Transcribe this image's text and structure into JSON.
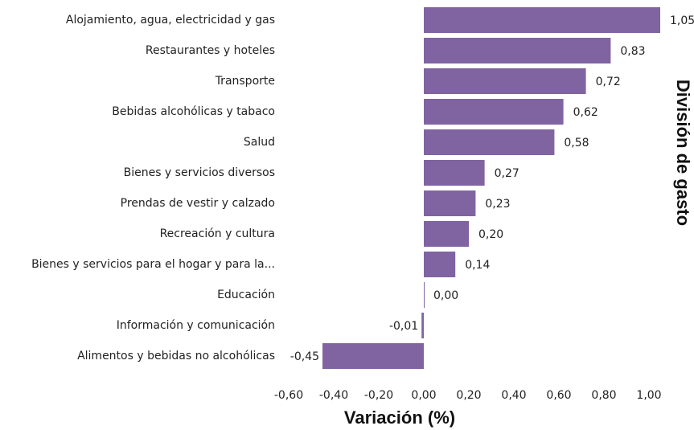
{
  "chart_data": {
    "type": "barh",
    "categories": [
      "Alojamiento, agua, electricidad y gas",
      "Restaurantes y hoteles",
      "Transporte",
      "Bebidas alcohólicas y tabaco",
      "Salud",
      "Bienes y servicios diversos",
      "Prendas de vestir y calzado",
      "Recreación y cultura",
      "Bienes y servicios para el hogar y para la...",
      "Educación",
      "Información y comunicación",
      "Alimentos y bebidas no alcohólicas"
    ],
    "values": [
      1.05,
      0.83,
      0.72,
      0.62,
      0.58,
      0.27,
      0.23,
      0.2,
      0.14,
      0.0,
      -0.01,
      -0.45
    ],
    "value_labels": [
      "1,05",
      "0,83",
      "0,72",
      "0,62",
      "0,58",
      "0,27",
      "0,23",
      "0,20",
      "0,14",
      "0,00",
      "-0,01",
      "-0,45"
    ],
    "color": "#8064a2",
    "xlabel": "Variación (%)",
    "ylabel": "División de gasto",
    "xlim": [
      -0.6,
      1.1
    ],
    "xticks": [
      {
        "value": -0.6,
        "label": "-0,60"
      },
      {
        "value": -0.4,
        "label": "-0,40"
      },
      {
        "value": -0.2,
        "label": "-0,20"
      },
      {
        "value": 0,
        "label": "0,00"
      },
      {
        "value": 0.2,
        "label": "0,20"
      },
      {
        "value": 0.4,
        "label": "0,40"
      },
      {
        "value": 0.6,
        "label": "0,60"
      },
      {
        "value": 0.8,
        "label": "0,80"
      },
      {
        "value": 1.0,
        "label": "1,00"
      }
    ]
  }
}
